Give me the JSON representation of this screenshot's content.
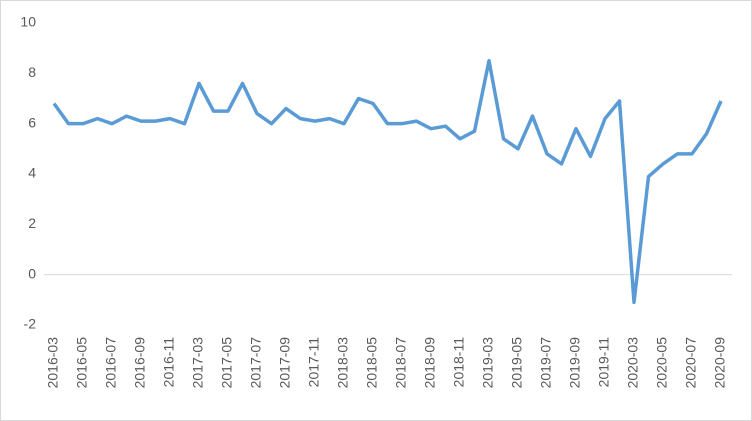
{
  "chart_data": {
    "type": "line",
    "categories": [
      "2016-03",
      null,
      "2016-05",
      null,
      "2016-07",
      null,
      "2016-09",
      null,
      "2016-11",
      null,
      "2017-03",
      null,
      "2017-05",
      null,
      "2017-07",
      null,
      "2017-09",
      null,
      "2017-11",
      null,
      "2018-03",
      null,
      "2018-05",
      null,
      "2018-07",
      null,
      "2018-09",
      null,
      "2018-11",
      null,
      "2019-03",
      null,
      "2019-05",
      null,
      "2019-07",
      null,
      "2019-09",
      null,
      "2019-11",
      null,
      "2020-03",
      null,
      "2020-05",
      null,
      "2020-07",
      null,
      "2020-09"
    ],
    "series": [
      {
        "color": "#5b9bd5",
        "values": [
          6.8,
          6.0,
          6.0,
          6.2,
          6.0,
          6.3,
          6.1,
          6.1,
          6.2,
          6.0,
          7.6,
          6.5,
          6.5,
          7.6,
          6.4,
          6.0,
          6.6,
          6.2,
          6.1,
          6.2,
          6.0,
          7.0,
          6.8,
          6.0,
          6.0,
          6.1,
          5.8,
          5.9,
          5.4,
          5.7,
          8.5,
          5.4,
          5.0,
          6.3,
          4.8,
          4.4,
          5.8,
          4.7,
          6.2,
          6.9,
          -1.1,
          3.9,
          4.4,
          4.8,
          4.8,
          5.6,
          6.9
        ]
      }
    ],
    "ylim": [
      -2,
      10
    ],
    "yticks": [
      -2,
      0,
      2,
      4,
      6,
      8,
      10
    ],
    "grid": false
  }
}
